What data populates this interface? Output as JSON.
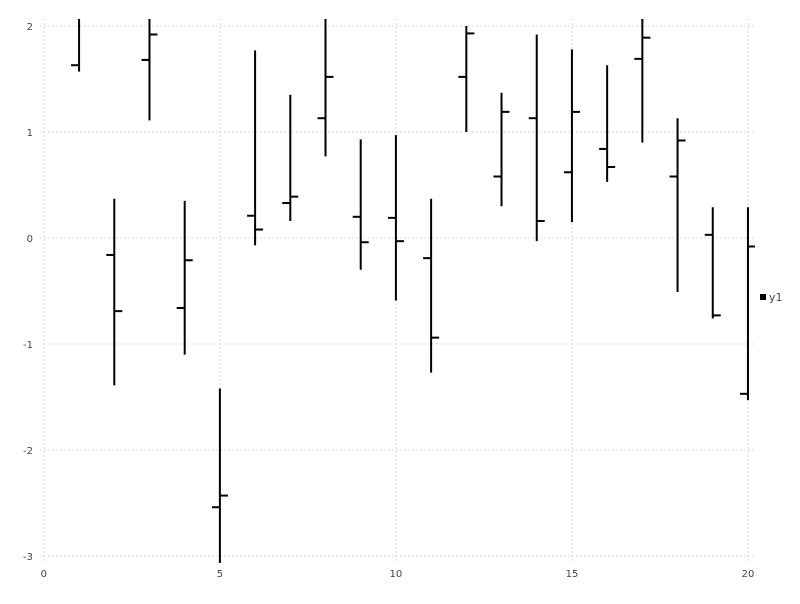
{
  "chart_data": {
    "type": "ohlc",
    "title": "",
    "xlabel": "",
    "ylabel": "",
    "xlim": [
      -0.11,
      20.2
    ],
    "ylim": [
      -3.066,
      2.066
    ],
    "grid": true,
    "legend_placement": "right",
    "x_ticks": [
      0,
      5,
      10,
      15,
      20
    ],
    "x_tick_labels": [
      "0",
      "5",
      "10",
      "15",
      "20"
    ],
    "y_ticks": [
      2,
      1,
      0,
      -1,
      -2,
      -3
    ],
    "y_tick_labels": [
      "2",
      "1",
      "0",
      "-1",
      "-2",
      "-3"
    ],
    "colors": {
      "series": "#000000",
      "grid": "#d8d8e6",
      "text": "#444444"
    },
    "series": [
      {
        "name": "y1",
        "x": [
          1,
          2,
          3,
          4,
          5,
          6,
          7,
          8,
          9,
          10,
          11,
          12,
          13,
          14,
          15,
          16,
          17,
          18,
          19,
          20
        ],
        "open": [
          1.63,
          -0.16,
          1.68,
          -0.66,
          -2.54,
          0.21,
          0.33,
          1.13,
          0.2,
          0.19,
          -0.19,
          1.52,
          0.58,
          1.13,
          0.62,
          0.84,
          1.69,
          0.58,
          0.03,
          -1.47
        ],
        "high": [
          2.2,
          0.37,
          2.2,
          0.35,
          -1.42,
          1.77,
          1.35,
          2.2,
          0.93,
          0.97,
          0.37,
          2.0,
          1.37,
          1.92,
          1.78,
          1.63,
          2.1,
          1.13,
          0.29,
          0.29
        ],
        "low": [
          1.57,
          -1.39,
          1.11,
          -1.1,
          -3.07,
          -0.07,
          0.16,
          0.77,
          -0.3,
          -0.59,
          -1.27,
          1.0,
          0.3,
          -0.03,
          0.15,
          0.53,
          0.9,
          -0.51,
          -0.76,
          -1.53
        ],
        "close": [
          2.1,
          -0.69,
          1.92,
          -0.21,
          -2.43,
          0.08,
          0.39,
          1.52,
          -0.04,
          -0.03,
          -0.94,
          1.93,
          1.19,
          0.16,
          1.19,
          0.67,
          1.89,
          0.92,
          -0.73,
          -0.08
        ]
      }
    ]
  }
}
